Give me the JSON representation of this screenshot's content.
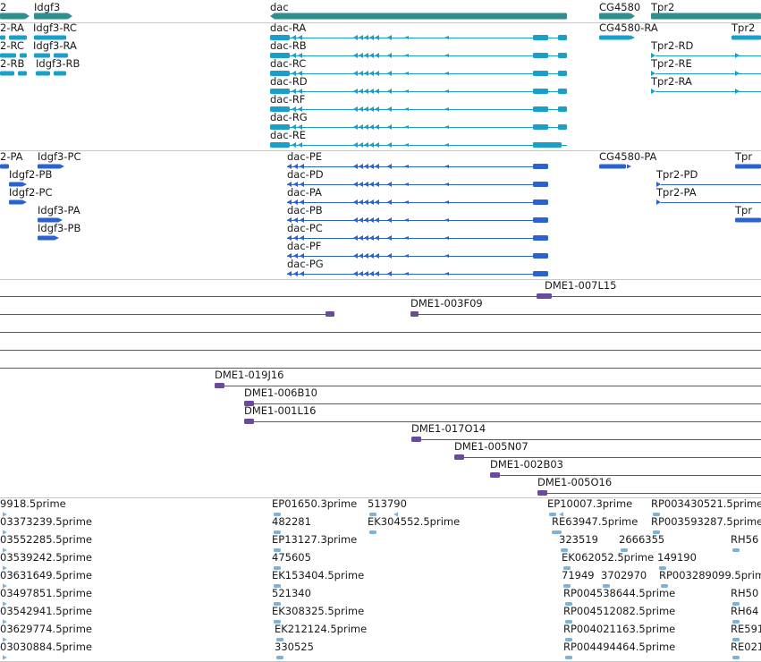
{
  "colors": {
    "gene": "#2f8f8f",
    "transcript": "#1aa0c8",
    "protein": "#2a62d0",
    "clone": "#6a4aa0",
    "est": "#7ab4dc",
    "separator": "#c8c8c8"
  },
  "tracks": {
    "genes": [
      "2",
      "Idgf3",
      "dac",
      "CG4580",
      "Tpr2"
    ],
    "transcripts": [
      "2-RA",
      "Idgf3-RC",
      "Idgf3-RA",
      "2-RC",
      "Idgf3-RA",
      "2-RB",
      "Idgf3-RB",
      "dac-RA",
      "dac-RB",
      "dac-RC",
      "dac-RD",
      "dac-RF",
      "dac-RG",
      "dac-RE",
      "CG4580-RA",
      "Tpr2-RD",
      "Tpr2-RE",
      "Tpr2-RA",
      "Tpr2"
    ],
    "proteins": [
      "2-PA",
      "Idgf3-PC",
      "Idgf2-PB",
      "Idgf2-PC",
      "Idgf3-PA",
      "Idgf3-PB",
      "dac-PE",
      "dac-PD",
      "dac-PA",
      "dac-PB",
      "dac-PC",
      "dac-PF",
      "dac-PG",
      "CG4580-PA",
      "Tpr2-PD",
      "Tpr2-PA",
      "Tpr",
      "Tpr"
    ],
    "clones": [
      "DME1-007L15",
      "DME1-003F09",
      "DME1-019J16",
      "DME1-006B10",
      "DME1-001L16",
      "DME1-017O14",
      "DME1-005N07",
      "DME1-002B03",
      "DME1-005O16"
    ],
    "ests": [
      "9918.5prime",
      "03373239.5prime",
      "03552285.5prime",
      "03539242.5prime",
      "03631649.5prime",
      "03497851.5prime",
      "03542941.5prime",
      "03629774.5prime",
      "03030884.5prime",
      "EP01650.3prime",
      "513790",
      "482281",
      "EK304552.5prime",
      "EP13127.3prime",
      "475605",
      "EK153404.5prime",
      "521340",
      "EK308325.5prime",
      "EK212124.5prime",
      "330525",
      "EP10007.3prime",
      "RE63947.5prime",
      "323519",
      "2666355",
      "EK062052.5prime",
      "71949",
      "3702970",
      "RP004538644.5prime",
      "RP004512082.5prime",
      "RP004021163.5prime",
      "RP004494464.5prime",
      "RP003430521.5prime",
      "RP003593287.5prime",
      "RH56",
      "149190",
      "RP003289099.5prime",
      "RH50",
      "RH64",
      "RE591",
      "RE021"
    ]
  }
}
